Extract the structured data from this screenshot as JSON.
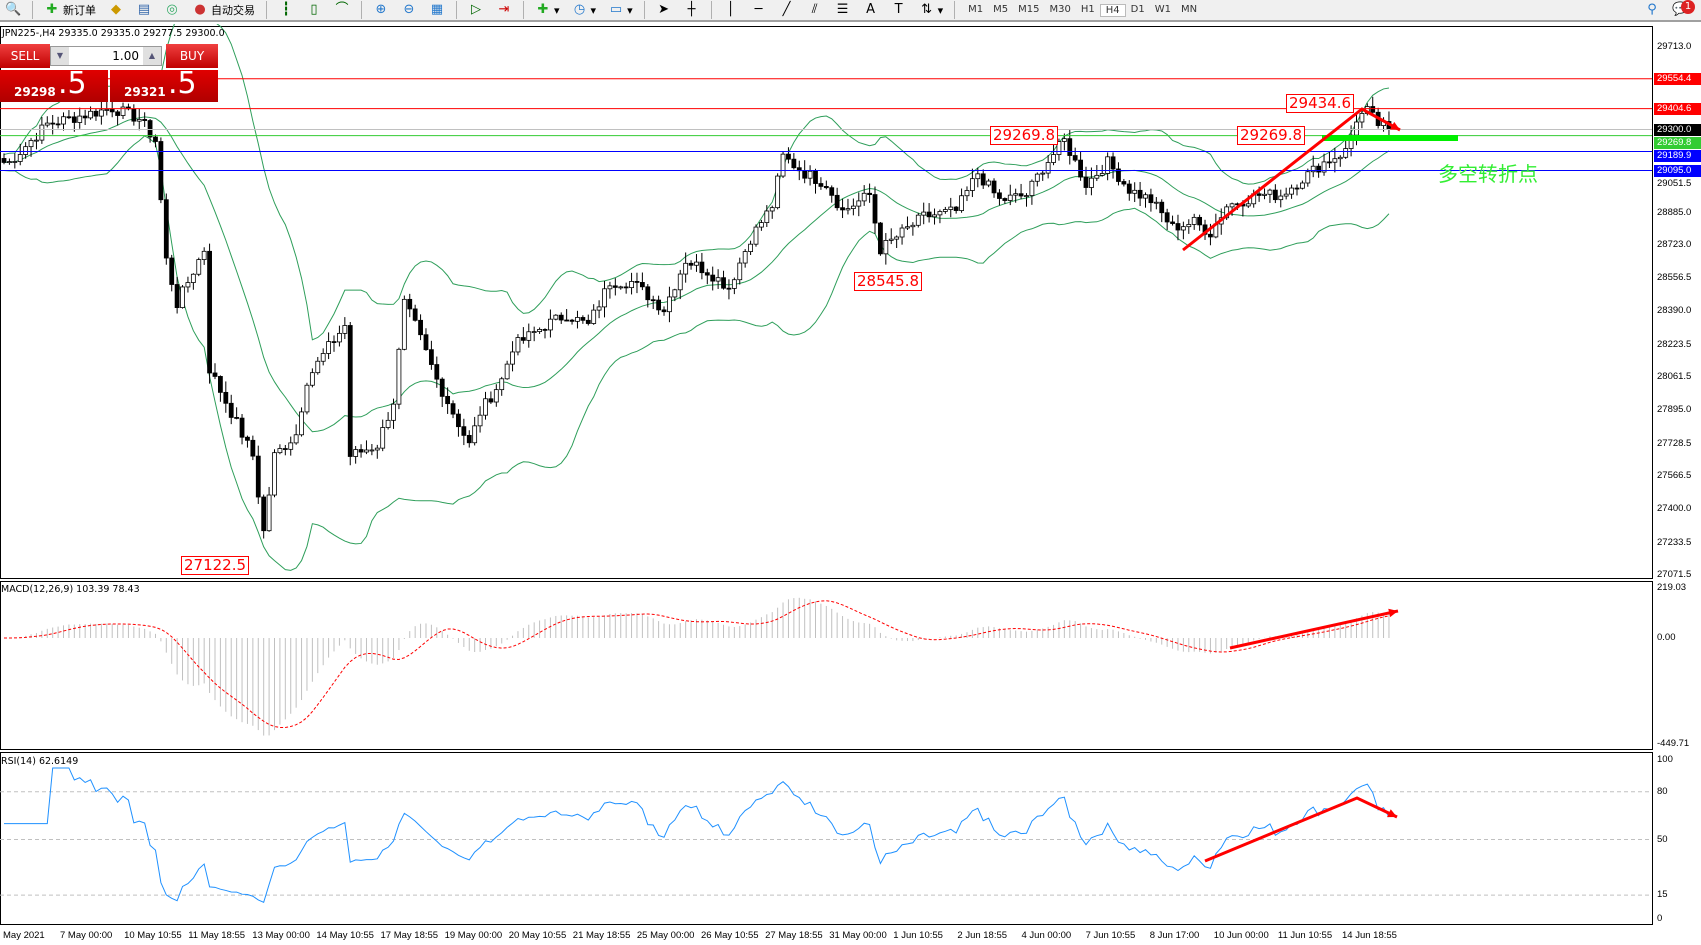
{
  "toolbar": {
    "items": [
      {
        "icon": "search-icon",
        "label": ""
      },
      {
        "icon": "new-order-icon",
        "label": "新订单"
      },
      {
        "icon": "gold-icon",
        "label": ""
      },
      {
        "icon": "database-icon",
        "label": ""
      },
      {
        "icon": "signal-icon",
        "label": ""
      },
      {
        "icon": "auto-trading-icon",
        "label": "自动交易"
      }
    ],
    "timeframes": [
      "M1",
      "M5",
      "M15",
      "M30",
      "H1",
      "H4",
      "D1",
      "W1",
      "MN"
    ],
    "active_timeframe": "H4",
    "notification_count": "1"
  },
  "chart": {
    "header": "JPN225-,H4  29335.0 29335.0 29277.5 29300.0",
    "trade": {
      "sell_label": "SELL",
      "buy_label": "BUY",
      "lot": "1.00",
      "sell_main": "29298",
      "sell_big": ".5",
      "buy_main": "29321",
      "buy_big": ".5"
    },
    "colors": {
      "up_candle": "#ffffff",
      "down_candle": "#000000",
      "bollinger": "#2e9e5a",
      "macd_signal": "#ff0000",
      "macd_hist": "#c0c0c0",
      "rsi": "#1e90ff",
      "annotation": "#ff0000",
      "cn_text": "#33ee33"
    }
  },
  "chart_data": {
    "type": "candlestick",
    "symbol": "JPN225-",
    "timeframe": "H4",
    "price_ticks": [
      "29713.0",
      "29051.5",
      "28885.0",
      "28723.0",
      "28556.5",
      "28390.0",
      "28223.5",
      "28061.5",
      "27895.0",
      "27728.5",
      "27566.5",
      "27400.0",
      "27233.5",
      "27071.5"
    ],
    "price_range": [
      27071.5,
      29713.0
    ],
    "date_ticks": [
      "May 2021",
      "7 May 00:00",
      "10 May 10:55",
      "11 May 18:55",
      "13 May 00:00",
      "14 May 10:55",
      "17 May 18:55",
      "19 May 00:00",
      "20 May 10:55",
      "21 May 18:55",
      "25 May 00:00",
      "26 May 10:55",
      "27 May 18:55",
      "31 May 00:00",
      "1 Jun 10:55",
      "2 Jun 18:55",
      "4 Jun 00:00",
      "7 Jun 10:55",
      "8 Jun 17:00",
      "10 Jun 00:00",
      "11 Jun 10:55",
      "14 Jun 18:55"
    ],
    "close_path": {
      "bar": [
        1,
        8,
        20,
        25,
        28,
        30,
        32,
        37,
        38,
        42,
        46,
        48,
        50,
        54,
        56,
        60,
        63,
        64,
        69,
        72,
        74,
        76,
        80,
        83,
        86,
        88,
        92,
        94,
        100,
        104,
        108,
        112,
        116,
        122,
        126,
        130,
        134,
        138,
        142,
        144,
        148,
        152,
        155,
        160,
        162,
        166,
        170,
        176,
        180,
        184,
        189,
        192,
        196,
        200,
        204,
        208,
        212,
        216,
        220,
        223,
        226,
        232,
        236,
        240,
        244,
        248,
        250,
        252,
        254,
        256
      ],
      "price": [
        29136,
        29327,
        29408,
        29354,
        29245,
        28647,
        28429,
        28701,
        28103,
        27885,
        27668,
        27287,
        27668,
        27776,
        28048,
        28212,
        28320,
        27668,
        27722,
        27940,
        28429,
        28320,
        28048,
        27885,
        27722,
        27885,
        28048,
        28212,
        28320,
        28375,
        28320,
        28538,
        28538,
        28402,
        28647,
        28592,
        28511,
        28756,
        28919,
        29164,
        29082,
        29028,
        28892,
        28973,
        28701,
        28783,
        28864,
        28892,
        29082,
        28946,
        28973,
        29109,
        29245,
        29028,
        29136,
        29000,
        28946,
        28810,
        28837,
        28783,
        28919,
        28973,
        28973,
        29055,
        29136,
        29191,
        29354,
        29392,
        29327,
        29300
      ]
    },
    "levels": [
      {
        "price": "29554.4",
        "color": "#ff0000"
      },
      {
        "price": "29404.6",
        "color": "#ff0000"
      },
      {
        "price": "29300.0",
        "color": "#000000"
      },
      {
        "price": "29269.8",
        "color": "#33cc33"
      },
      {
        "price": "29189.9",
        "color": "#0000ff"
      },
      {
        "price": "29095.0",
        "color": "#0000ff"
      }
    ],
    "annotations": [
      "29434.6",
      "29269.8",
      "29269.8",
      "28545.8",
      "27122.5"
    ],
    "cn_label": "多空转折点",
    "macd": {
      "label": "MACD(12,26,9) 103.39 78.43",
      "ticks": [
        "219.03",
        "0.00",
        "-449.71"
      ],
      "range": [
        -449.71,
        219.03
      ]
    },
    "rsi": {
      "label": "RSI(14) 62.6149",
      "ticks": [
        "100",
        "80",
        "50",
        "15",
        "0"
      ],
      "levels": [
        80,
        50,
        15
      ]
    }
  }
}
